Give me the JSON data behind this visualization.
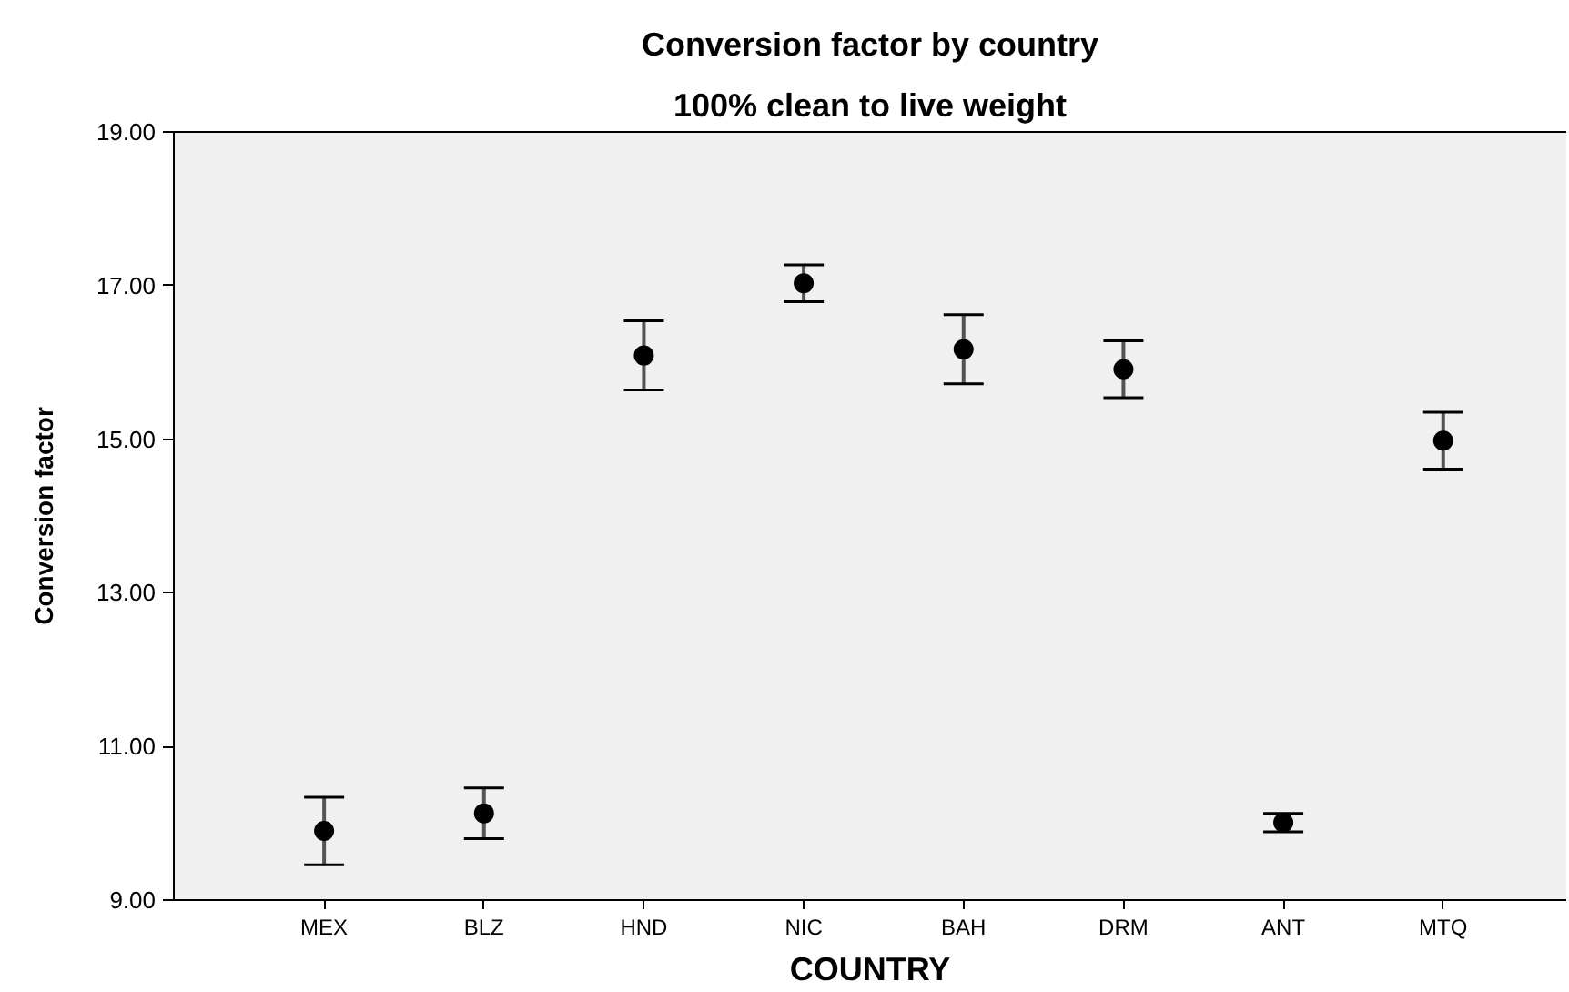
{
  "chart_data": {
    "type": "scatter",
    "title": "Conversion factor by country",
    "subtitle": "100% clean to live weight",
    "xlabel": "COUNTRY",
    "ylabel": "Conversion factor",
    "categories": [
      "MEX",
      "BLZ",
      "HND",
      "NIC",
      "BAH",
      "DRM",
      "ANT",
      "MTQ"
    ],
    "series": [
      {
        "color": "#000000",
        "values": [
          9.9,
          10.13,
          16.09,
          17.03,
          16.17,
          15.91,
          10.01,
          14.98
        ],
        "errors": [
          0.44,
          0.33,
          0.45,
          0.24,
          0.45,
          0.37,
          0.12,
          0.37
        ]
      }
    ],
    "ylim": [
      9,
      19
    ],
    "yticks": [
      {
        "value": 9,
        "label": "9.00"
      },
      {
        "value": 11,
        "label": "11.00"
      },
      {
        "value": 13,
        "label": "13.00"
      },
      {
        "value": 15,
        "label": "15.00"
      },
      {
        "value": 17,
        "label": "17.00"
      },
      {
        "value": 19,
        "label": "19.00"
      }
    ],
    "grid": false,
    "marker": "circle"
  }
}
